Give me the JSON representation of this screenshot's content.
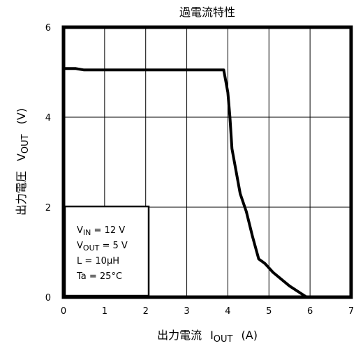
{
  "chart_data": {
    "type": "line",
    "title": "過電流特性",
    "xlabel": {
      "prefix": "出力電流",
      "symbol": "I",
      "sub": "OUT",
      "unit": "(A)"
    },
    "ylabel": {
      "prefix": "出力電圧",
      "symbol": "V",
      "sub": "OUT",
      "unit": "(V)"
    },
    "xlim": [
      0,
      7
    ],
    "ylim": [
      0,
      6
    ],
    "x_ticks": [
      "0",
      "1",
      "2",
      "3",
      "4",
      "5",
      "6",
      "7"
    ],
    "y_ticks": [
      "0",
      "2",
      "4",
      "6"
    ],
    "grid": true,
    "series": [
      {
        "color": "#000000",
        "points": [
          [
            0,
            5.08
          ],
          [
            0.3,
            5.08
          ],
          [
            0.5,
            5.05
          ],
          [
            1.0,
            5.05
          ],
          [
            2.0,
            5.05
          ],
          [
            3.0,
            5.05
          ],
          [
            3.9,
            5.05
          ],
          [
            4.0,
            4.55
          ],
          [
            4.05,
            4.0
          ],
          [
            4.1,
            3.3
          ],
          [
            4.2,
            2.8
          ],
          [
            4.3,
            2.3
          ],
          [
            4.45,
            1.9
          ],
          [
            4.6,
            1.35
          ],
          [
            4.75,
            0.85
          ],
          [
            4.9,
            0.75
          ],
          [
            5.1,
            0.55
          ],
          [
            5.5,
            0.25
          ],
          [
            5.92,
            0.0
          ]
        ]
      }
    ],
    "conditions": {
      "lines": [
        {
          "symbol": "V",
          "sub": "IN",
          "text": " = 12 V"
        },
        {
          "symbol": "V",
          "sub": "OUT",
          "text": " = 5 V"
        },
        {
          "symbol": "",
          "sub": "",
          "text": "L = 10μH"
        },
        {
          "symbol": "",
          "sub": "",
          "text": "Ta = 25°C"
        }
      ]
    }
  }
}
